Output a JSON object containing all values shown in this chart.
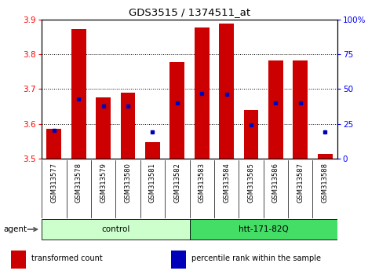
{
  "title": "GDS3515 / 1374511_at",
  "samples": [
    "GSM313577",
    "GSM313578",
    "GSM313579",
    "GSM313580",
    "GSM313581",
    "GSM313582",
    "GSM313583",
    "GSM313584",
    "GSM313585",
    "GSM313586",
    "GSM313587",
    "GSM313588"
  ],
  "transformed_count": [
    3.585,
    3.872,
    3.675,
    3.69,
    3.548,
    3.778,
    3.878,
    3.888,
    3.64,
    3.782,
    3.782,
    3.513
  ],
  "percentile_pct": [
    20,
    43,
    38,
    38,
    19,
    40,
    47,
    46,
    24,
    40,
    40,
    19
  ],
  "ylim": [
    3.5,
    3.9
  ],
  "yticks": [
    3.5,
    3.6,
    3.7,
    3.8,
    3.9
  ],
  "right_yticks": [
    0,
    25,
    50,
    75,
    100
  ],
  "groups": [
    {
      "label": "control",
      "start": 0,
      "end": 6,
      "color": "#ccffcc"
    },
    {
      "label": "htt-171-82Q",
      "start": 6,
      "end": 12,
      "color": "#44dd66"
    }
  ],
  "agent_label": "agent",
  "bar_color": "#cc0000",
  "dot_color": "#0000bb",
  "legend": [
    {
      "label": "transformed count",
      "color": "#cc0000"
    },
    {
      "label": "percentile rank within the sample",
      "color": "#0000bb"
    }
  ]
}
